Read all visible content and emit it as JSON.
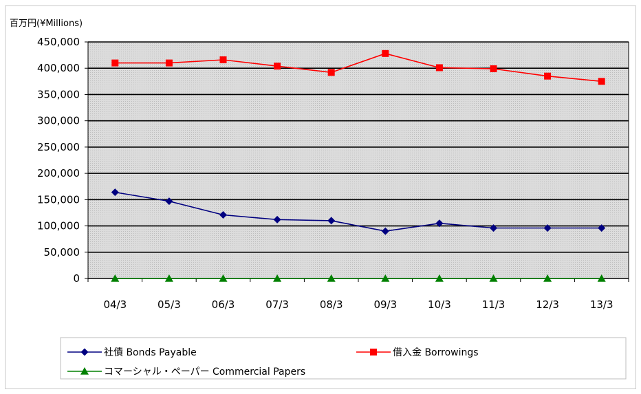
{
  "chart_data": {
    "type": "line",
    "unit_label": "百万円(¥Millions)",
    "categories": [
      "04/3",
      "05/3",
      "06/3",
      "07/3",
      "08/3",
      "09/3",
      "10/3",
      "11/3",
      "12/3",
      "13/3"
    ],
    "ylim": [
      0,
      450000
    ],
    "yticks": [
      0,
      50000,
      100000,
      150000,
      200000,
      250000,
      300000,
      350000,
      400000,
      450000
    ],
    "ytick_labels": [
      "0",
      "50,000",
      "100,000",
      "150,000",
      "200,000",
      "250,000",
      "300,000",
      "350,000",
      "400,000",
      "450,000"
    ],
    "grid": true,
    "legend_position": "bottom",
    "series": [
      {
        "name": "社債 Bonds Payable",
        "color": "#000080",
        "marker": "diamond",
        "values": [
          164000,
          147000,
          121000,
          112000,
          110000,
          90000,
          105000,
          96000,
          96000,
          96000
        ]
      },
      {
        "name": "借入金 Borrowings",
        "color": "#ff0000",
        "marker": "square",
        "values": [
          410000,
          410000,
          416000,
          404000,
          392000,
          428000,
          401000,
          399000,
          385000,
          375000
        ]
      },
      {
        "name": "コマーシャル・ペーパー Commercial Papers",
        "color": "#008000",
        "marker": "triangle",
        "values": [
          0,
          0,
          0,
          0,
          0,
          0,
          0,
          0,
          0,
          0
        ]
      }
    ]
  }
}
